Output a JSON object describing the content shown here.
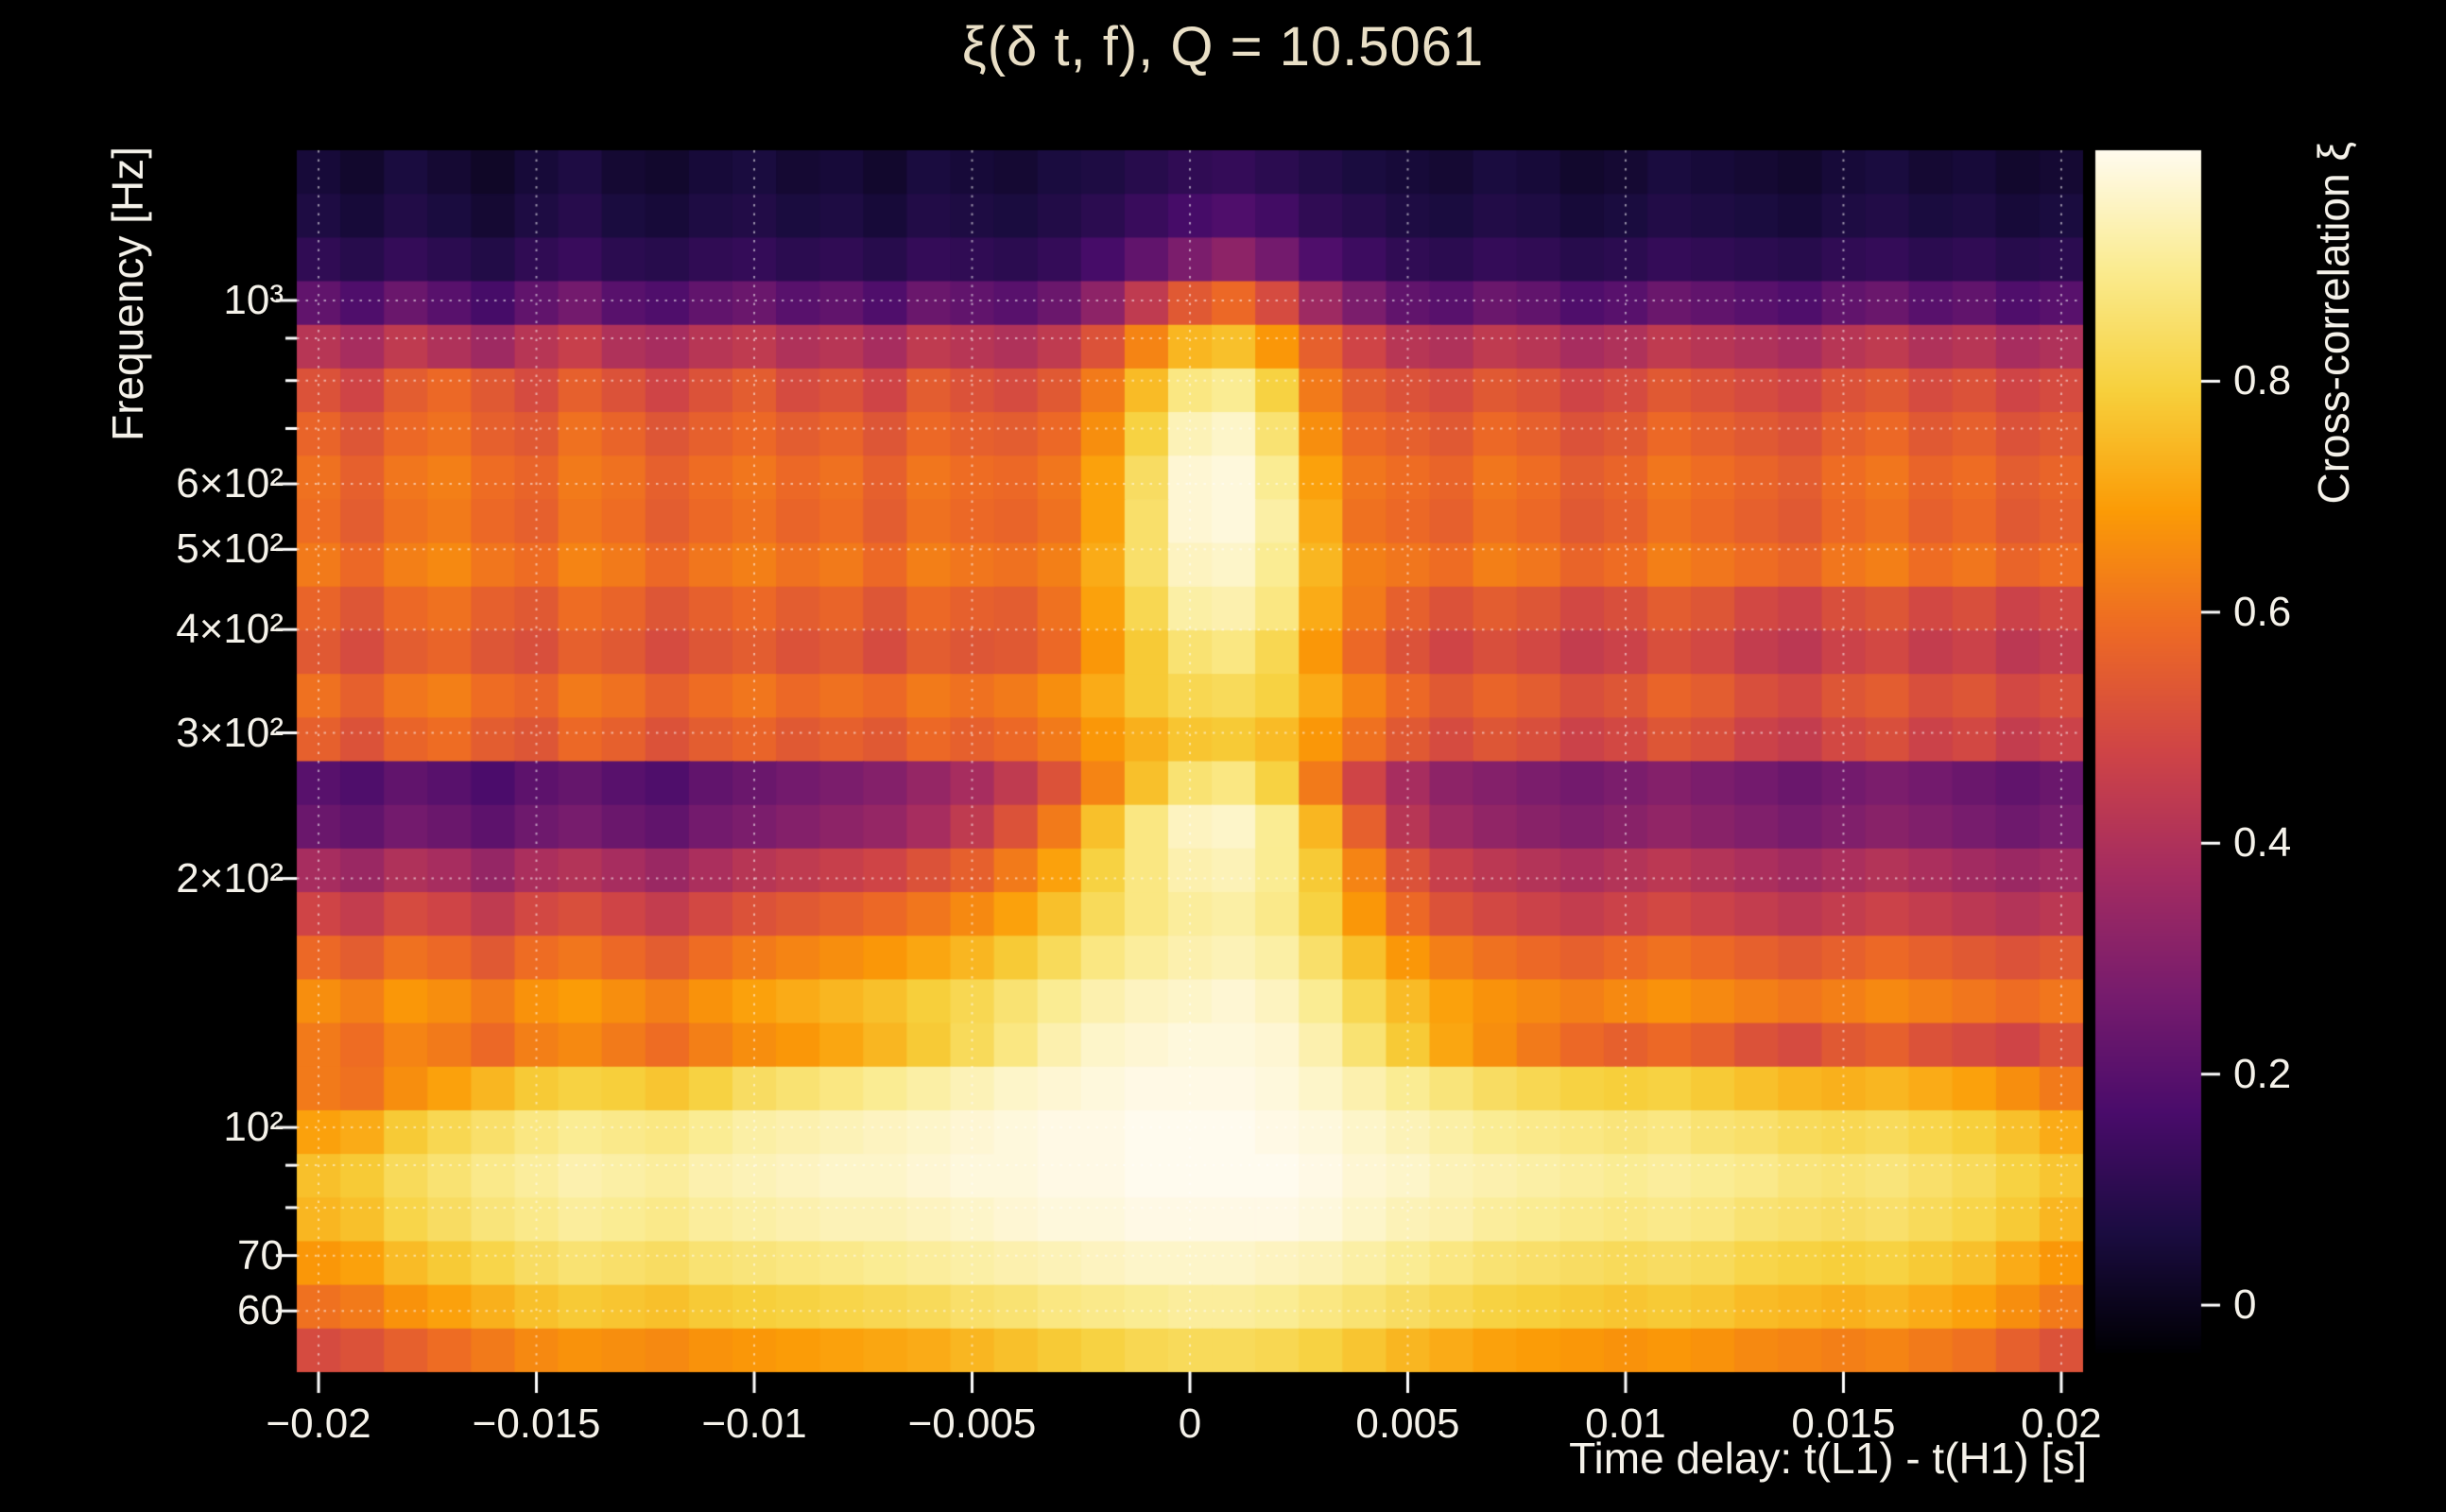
{
  "figure": {
    "background": "#000000",
    "title_color": "#e9dfc6",
    "text_color": "#f5f2ea",
    "grid_color": "rgba(255,255,255,0.55)",
    "tick_color": "#ffffff"
  },
  "chart_data": {
    "type": "heatmap",
    "title": "ξ(δ t, f), Q = 10.5061",
    "xlabel": "Time delay: t(L1) - t(H1) [s]",
    "ylabel": "Frequency [Hz]",
    "colorbar_label": "Cross-correlation ξ",
    "x_range": [
      -0.0205,
      0.0205
    ],
    "y_range": [
      50.6,
      1519
    ],
    "y_scale": "log",
    "grid": true,
    "x_ticks": [
      -0.02,
      -0.015,
      -0.01,
      -0.005,
      0,
      0.005,
      0.01,
      0.015,
      0.02
    ],
    "x_tick_labels": [
      "−0.02",
      "−0.015",
      "−0.01",
      "−0.005",
      "0",
      "0.005",
      "0.01",
      "0.015",
      "0.02"
    ],
    "y_ticks": [
      1000,
      600,
      500,
      400,
      300,
      200,
      100,
      70,
      60
    ],
    "y_tick_labels": [
      "10³",
      "6×10²",
      "5×10²",
      "4×10²",
      "3×10²",
      "2×10²",
      "10²",
      "70",
      "60"
    ],
    "y_minor_ticks": [
      80,
      90,
      700,
      800,
      900
    ],
    "y_gridlines": [
      60,
      70,
      80,
      90,
      100,
      200,
      300,
      400,
      500,
      600,
      700,
      800,
      900,
      1000
    ],
    "colorbar_ticks": [
      0,
      0.2,
      0.4,
      0.6,
      0.8
    ],
    "colorbar_tick_labels": [
      "0",
      "0.2",
      "0.4",
      "0.6",
      "0.8"
    ],
    "z_display_range": [
      -0.04,
      1.0
    ],
    "colormap": "inferno-like",
    "colormap_stops": [
      [
        0.0,
        "#000004"
      ],
      [
        0.1,
        "#1b0c41"
      ],
      [
        0.2,
        "#4a0c6b"
      ],
      [
        0.3,
        "#781c6d"
      ],
      [
        0.4,
        "#a52c60"
      ],
      [
        0.5,
        "#cf4446"
      ],
      [
        0.6,
        "#ed6925"
      ],
      [
        0.7,
        "#fb9b06"
      ],
      [
        0.8,
        "#f7d03c"
      ],
      [
        0.9,
        "#faeb8f"
      ],
      [
        1.0,
        "#fffbee"
      ]
    ],
    "time_bins": {
      "start": -0.02,
      "step": 0.001,
      "count": 41
    },
    "frequency_bin_centers_hz": [
      1519,
      1339,
      1181,
      1041,
      918,
      809,
      713,
      629,
      554,
      489,
      431,
      380,
      335,
      295,
      260,
      229,
      202,
      178,
      157,
      139,
      122,
      108,
      95,
      84,
      74,
      65,
      57,
      51
    ],
    "values": [
      [
        0.05,
        0.03,
        0.06,
        0.04,
        0.02,
        0.05,
        0.07,
        0.04,
        0.03,
        0.05,
        0.06,
        0.04,
        0.05,
        0.03,
        0.06,
        0.05,
        0.04,
        0.06,
        0.07,
        0.09,
        0.11,
        0.12,
        0.1,
        0.08,
        0.06,
        0.05,
        0.04,
        0.06,
        0.05,
        0.03,
        0.04,
        0.06,
        0.05,
        0.04,
        0.03,
        0.05,
        0.06,
        0.04,
        0.05,
        0.03,
        0.04
      ],
      [
        0.07,
        0.05,
        0.08,
        0.06,
        0.04,
        0.07,
        0.09,
        0.06,
        0.05,
        0.07,
        0.08,
        0.06,
        0.07,
        0.05,
        0.08,
        0.07,
        0.06,
        0.08,
        0.1,
        0.13,
        0.16,
        0.18,
        0.15,
        0.11,
        0.09,
        0.07,
        0.06,
        0.08,
        0.07,
        0.05,
        0.06,
        0.08,
        0.07,
        0.06,
        0.05,
        0.07,
        0.08,
        0.06,
        0.07,
        0.05,
        0.06
      ],
      [
        0.11,
        0.09,
        0.12,
        0.1,
        0.08,
        0.11,
        0.13,
        0.1,
        0.09,
        0.11,
        0.12,
        0.1,
        0.11,
        0.09,
        0.12,
        0.11,
        0.1,
        0.12,
        0.16,
        0.22,
        0.28,
        0.32,
        0.26,
        0.18,
        0.14,
        0.11,
        0.1,
        0.12,
        0.11,
        0.09,
        0.1,
        0.12,
        0.11,
        0.1,
        0.09,
        0.11,
        0.12,
        0.1,
        0.11,
        0.09,
        0.1
      ],
      [
        0.22,
        0.18,
        0.24,
        0.2,
        0.16,
        0.22,
        0.26,
        0.2,
        0.18,
        0.22,
        0.24,
        0.2,
        0.22,
        0.18,
        0.24,
        0.22,
        0.2,
        0.24,
        0.32,
        0.44,
        0.54,
        0.58,
        0.5,
        0.36,
        0.28,
        0.22,
        0.2,
        0.24,
        0.22,
        0.18,
        0.2,
        0.24,
        0.22,
        0.2,
        0.18,
        0.22,
        0.24,
        0.2,
        0.22,
        0.18,
        0.2
      ],
      [
        0.42,
        0.38,
        0.44,
        0.4,
        0.36,
        0.42,
        0.46,
        0.4,
        0.38,
        0.42,
        0.44,
        0.4,
        0.42,
        0.38,
        0.44,
        0.42,
        0.4,
        0.44,
        0.52,
        0.64,
        0.74,
        0.76,
        0.68,
        0.56,
        0.48,
        0.42,
        0.4,
        0.44,
        0.42,
        0.38,
        0.4,
        0.44,
        0.42,
        0.4,
        0.38,
        0.42,
        0.44,
        0.4,
        0.42,
        0.38,
        0.4
      ],
      [
        0.52,
        0.48,
        0.55,
        0.58,
        0.54,
        0.5,
        0.56,
        0.52,
        0.48,
        0.52,
        0.55,
        0.5,
        0.52,
        0.48,
        0.55,
        0.52,
        0.5,
        0.54,
        0.62,
        0.75,
        0.88,
        0.9,
        0.8,
        0.62,
        0.55,
        0.52,
        0.5,
        0.54,
        0.52,
        0.48,
        0.5,
        0.54,
        0.52,
        0.5,
        0.48,
        0.52,
        0.54,
        0.5,
        0.52,
        0.48,
        0.5
      ],
      [
        0.57,
        0.53,
        0.58,
        0.6,
        0.56,
        0.54,
        0.6,
        0.57,
        0.53,
        0.56,
        0.58,
        0.55,
        0.57,
        0.53,
        0.58,
        0.56,
        0.55,
        0.58,
        0.66,
        0.8,
        0.94,
        0.96,
        0.86,
        0.66,
        0.58,
        0.56,
        0.54,
        0.58,
        0.56,
        0.52,
        0.54,
        0.58,
        0.56,
        0.54,
        0.52,
        0.56,
        0.58,
        0.54,
        0.56,
        0.52,
        0.54
      ],
      [
        0.6,
        0.56,
        0.61,
        0.63,
        0.59,
        0.57,
        0.62,
        0.6,
        0.56,
        0.59,
        0.61,
        0.58,
        0.6,
        0.56,
        0.61,
        0.59,
        0.58,
        0.61,
        0.7,
        0.84,
        0.97,
        0.98,
        0.9,
        0.7,
        0.61,
        0.59,
        0.57,
        0.61,
        0.59,
        0.55,
        0.57,
        0.61,
        0.59,
        0.57,
        0.55,
        0.59,
        0.61,
        0.57,
        0.59,
        0.55,
        0.57
      ],
      [
        0.59,
        0.55,
        0.6,
        0.62,
        0.58,
        0.56,
        0.61,
        0.59,
        0.55,
        0.58,
        0.6,
        0.57,
        0.59,
        0.55,
        0.6,
        0.58,
        0.57,
        0.6,
        0.7,
        0.85,
        0.97,
        0.98,
        0.92,
        0.72,
        0.6,
        0.58,
        0.56,
        0.6,
        0.58,
        0.54,
        0.56,
        0.6,
        0.58,
        0.56,
        0.54,
        0.58,
        0.6,
        0.56,
        0.58,
        0.54,
        0.56
      ],
      [
        0.62,
        0.58,
        0.63,
        0.65,
        0.61,
        0.59,
        0.64,
        0.62,
        0.58,
        0.61,
        0.63,
        0.6,
        0.62,
        0.58,
        0.63,
        0.61,
        0.6,
        0.63,
        0.72,
        0.85,
        0.95,
        0.96,
        0.9,
        0.74,
        0.63,
        0.61,
        0.59,
        0.63,
        0.61,
        0.57,
        0.59,
        0.63,
        0.61,
        0.59,
        0.57,
        0.61,
        0.63,
        0.59,
        0.61,
        0.57,
        0.59
      ],
      [
        0.57,
        0.53,
        0.58,
        0.6,
        0.56,
        0.54,
        0.59,
        0.57,
        0.53,
        0.56,
        0.58,
        0.55,
        0.57,
        0.53,
        0.58,
        0.56,
        0.55,
        0.6,
        0.7,
        0.82,
        0.92,
        0.93,
        0.88,
        0.72,
        0.62,
        0.56,
        0.52,
        0.55,
        0.53,
        0.49,
        0.51,
        0.55,
        0.53,
        0.49,
        0.47,
        0.51,
        0.53,
        0.49,
        0.51,
        0.47,
        0.49
      ],
      [
        0.54,
        0.5,
        0.55,
        0.57,
        0.53,
        0.51,
        0.56,
        0.54,
        0.5,
        0.53,
        0.55,
        0.52,
        0.54,
        0.5,
        0.55,
        0.53,
        0.54,
        0.58,
        0.68,
        0.78,
        0.86,
        0.88,
        0.82,
        0.68,
        0.58,
        0.52,
        0.48,
        0.51,
        0.49,
        0.45,
        0.47,
        0.51,
        0.49,
        0.45,
        0.43,
        0.47,
        0.49,
        0.45,
        0.47,
        0.43,
        0.45
      ],
      [
        0.6,
        0.56,
        0.61,
        0.63,
        0.59,
        0.57,
        0.62,
        0.6,
        0.56,
        0.59,
        0.61,
        0.58,
        0.6,
        0.58,
        0.62,
        0.6,
        0.62,
        0.66,
        0.72,
        0.78,
        0.82,
        0.83,
        0.8,
        0.72,
        0.64,
        0.58,
        0.54,
        0.57,
        0.55,
        0.51,
        0.53,
        0.57,
        0.55,
        0.51,
        0.49,
        0.53,
        0.55,
        0.51,
        0.53,
        0.49,
        0.51
      ],
      [
        0.56,
        0.52,
        0.57,
        0.59,
        0.55,
        0.53,
        0.58,
        0.56,
        0.52,
        0.55,
        0.57,
        0.54,
        0.56,
        0.54,
        0.58,
        0.56,
        0.58,
        0.62,
        0.68,
        0.73,
        0.77,
        0.78,
        0.75,
        0.68,
        0.6,
        0.54,
        0.5,
        0.53,
        0.51,
        0.47,
        0.49,
        0.53,
        0.51,
        0.47,
        0.45,
        0.49,
        0.51,
        0.47,
        0.49,
        0.45,
        0.47
      ],
      [
        0.2,
        0.18,
        0.22,
        0.2,
        0.17,
        0.21,
        0.23,
        0.2,
        0.18,
        0.22,
        0.24,
        0.26,
        0.28,
        0.3,
        0.34,
        0.38,
        0.44,
        0.52,
        0.64,
        0.76,
        0.86,
        0.88,
        0.8,
        0.62,
        0.48,
        0.38,
        0.32,
        0.3,
        0.28,
        0.26,
        0.28,
        0.3,
        0.28,
        0.26,
        0.24,
        0.26,
        0.28,
        0.26,
        0.24,
        0.22,
        0.24
      ],
      [
        0.24,
        0.22,
        0.26,
        0.24,
        0.21,
        0.25,
        0.27,
        0.24,
        0.22,
        0.26,
        0.28,
        0.3,
        0.32,
        0.34,
        0.38,
        0.44,
        0.52,
        0.62,
        0.76,
        0.88,
        0.95,
        0.96,
        0.9,
        0.74,
        0.56,
        0.42,
        0.36,
        0.33,
        0.31,
        0.29,
        0.31,
        0.33,
        0.31,
        0.29,
        0.27,
        0.29,
        0.31,
        0.29,
        0.27,
        0.25,
        0.27
      ],
      [
        0.38,
        0.35,
        0.4,
        0.38,
        0.34,
        0.39,
        0.41,
        0.38,
        0.35,
        0.39,
        0.42,
        0.44,
        0.46,
        0.48,
        0.52,
        0.56,
        0.62,
        0.7,
        0.8,
        0.88,
        0.93,
        0.94,
        0.9,
        0.78,
        0.64,
        0.52,
        0.46,
        0.43,
        0.41,
        0.39,
        0.41,
        0.43,
        0.41,
        0.39,
        0.37,
        0.39,
        0.41,
        0.39,
        0.37,
        0.35,
        0.37
      ],
      [
        0.48,
        0.45,
        0.5,
        0.48,
        0.44,
        0.49,
        0.51,
        0.48,
        0.45,
        0.49,
        0.52,
        0.54,
        0.56,
        0.58,
        0.61,
        0.65,
        0.7,
        0.76,
        0.83,
        0.88,
        0.91,
        0.92,
        0.89,
        0.8,
        0.68,
        0.58,
        0.52,
        0.49,
        0.47,
        0.45,
        0.47,
        0.49,
        0.47,
        0.45,
        0.43,
        0.45,
        0.47,
        0.45,
        0.43,
        0.41,
        0.43
      ],
      [
        0.58,
        0.55,
        0.6,
        0.58,
        0.54,
        0.59,
        0.61,
        0.58,
        0.55,
        0.59,
        0.62,
        0.64,
        0.66,
        0.68,
        0.71,
        0.74,
        0.78,
        0.83,
        0.88,
        0.91,
        0.93,
        0.94,
        0.92,
        0.85,
        0.76,
        0.68,
        0.63,
        0.6,
        0.58,
        0.56,
        0.58,
        0.6,
        0.58,
        0.56,
        0.54,
        0.56,
        0.58,
        0.56,
        0.54,
        0.52,
        0.54
      ],
      [
        0.66,
        0.63,
        0.68,
        0.66,
        0.62,
        0.67,
        0.69,
        0.66,
        0.63,
        0.67,
        0.7,
        0.72,
        0.74,
        0.76,
        0.79,
        0.82,
        0.86,
        0.9,
        0.93,
        0.95,
        0.96,
        0.97,
        0.95,
        0.9,
        0.82,
        0.75,
        0.7,
        0.67,
        0.65,
        0.63,
        0.65,
        0.67,
        0.65,
        0.63,
        0.61,
        0.63,
        0.65,
        0.63,
        0.61,
        0.59,
        0.61
      ],
      [
        0.62,
        0.59,
        0.64,
        0.62,
        0.58,
        0.63,
        0.65,
        0.62,
        0.59,
        0.63,
        0.66,
        0.68,
        0.71,
        0.74,
        0.78,
        0.83,
        0.88,
        0.93,
        0.96,
        0.97,
        0.98,
        0.98,
        0.97,
        0.93,
        0.86,
        0.78,
        0.71,
        0.66,
        0.62,
        0.58,
        0.56,
        0.58,
        0.56,
        0.52,
        0.5,
        0.54,
        0.56,
        0.52,
        0.5,
        0.48,
        0.52
      ],
      [
        0.62,
        0.6,
        0.66,
        0.7,
        0.74,
        0.78,
        0.8,
        0.79,
        0.77,
        0.8,
        0.84,
        0.86,
        0.88,
        0.9,
        0.92,
        0.94,
        0.96,
        0.97,
        0.98,
        0.99,
        0.99,
        0.99,
        0.98,
        0.96,
        0.93,
        0.9,
        0.87,
        0.84,
        0.82,
        0.8,
        0.79,
        0.8,
        0.78,
        0.76,
        0.74,
        0.73,
        0.74,
        0.72,
        0.7,
        0.66,
        0.62
      ],
      [
        0.7,
        0.72,
        0.78,
        0.82,
        0.85,
        0.88,
        0.9,
        0.89,
        0.88,
        0.9,
        0.92,
        0.93,
        0.94,
        0.95,
        0.96,
        0.97,
        0.98,
        0.99,
        0.99,
        1.0,
        1.0,
        1.0,
        0.99,
        0.98,
        0.96,
        0.94,
        0.92,
        0.9,
        0.89,
        0.88,
        0.87,
        0.88,
        0.86,
        0.85,
        0.83,
        0.82,
        0.83,
        0.81,
        0.79,
        0.76,
        0.72
      ],
      [
        0.76,
        0.78,
        0.83,
        0.86,
        0.89,
        0.91,
        0.93,
        0.92,
        0.91,
        0.93,
        0.94,
        0.95,
        0.96,
        0.96,
        0.97,
        0.98,
        0.98,
        0.99,
        0.99,
        1.0,
        1.0,
        1.0,
        1.0,
        0.99,
        0.97,
        0.96,
        0.94,
        0.93,
        0.92,
        0.91,
        0.9,
        0.91,
        0.9,
        0.89,
        0.87,
        0.86,
        0.87,
        0.85,
        0.83,
        0.8,
        0.77
      ],
      [
        0.74,
        0.76,
        0.81,
        0.84,
        0.87,
        0.89,
        0.91,
        0.9,
        0.89,
        0.91,
        0.92,
        0.93,
        0.94,
        0.94,
        0.95,
        0.96,
        0.97,
        0.98,
        0.98,
        0.99,
        0.99,
        0.99,
        0.99,
        0.98,
        0.96,
        0.94,
        0.93,
        0.91,
        0.9,
        0.89,
        0.88,
        0.89,
        0.88,
        0.86,
        0.85,
        0.84,
        0.85,
        0.83,
        0.81,
        0.78,
        0.74
      ],
      [
        0.68,
        0.7,
        0.75,
        0.78,
        0.81,
        0.84,
        0.86,
        0.85,
        0.84,
        0.86,
        0.87,
        0.88,
        0.89,
        0.9,
        0.91,
        0.92,
        0.93,
        0.94,
        0.95,
        0.96,
        0.96,
        0.96,
        0.95,
        0.94,
        0.92,
        0.9,
        0.88,
        0.86,
        0.85,
        0.84,
        0.83,
        0.84,
        0.83,
        0.81,
        0.8,
        0.79,
        0.8,
        0.78,
        0.76,
        0.72,
        0.68
      ],
      [
        0.6,
        0.62,
        0.67,
        0.7,
        0.73,
        0.76,
        0.78,
        0.77,
        0.76,
        0.78,
        0.79,
        0.8,
        0.81,
        0.82,
        0.83,
        0.85,
        0.86,
        0.88,
        0.89,
        0.9,
        0.91,
        0.91,
        0.9,
        0.88,
        0.86,
        0.84,
        0.82,
        0.8,
        0.79,
        0.78,
        0.77,
        0.78,
        0.77,
        0.75,
        0.74,
        0.73,
        0.74,
        0.72,
        0.7,
        0.66,
        0.62
      ],
      [
        0.5,
        0.52,
        0.56,
        0.59,
        0.62,
        0.65,
        0.67,
        0.66,
        0.65,
        0.67,
        0.68,
        0.69,
        0.7,
        0.71,
        0.72,
        0.74,
        0.76,
        0.78,
        0.8,
        0.82,
        0.83,
        0.83,
        0.82,
        0.8,
        0.77,
        0.74,
        0.72,
        0.7,
        0.69,
        0.68,
        0.67,
        0.68,
        0.67,
        0.65,
        0.64,
        0.63,
        0.64,
        0.62,
        0.6,
        0.56,
        0.52
      ]
    ]
  }
}
